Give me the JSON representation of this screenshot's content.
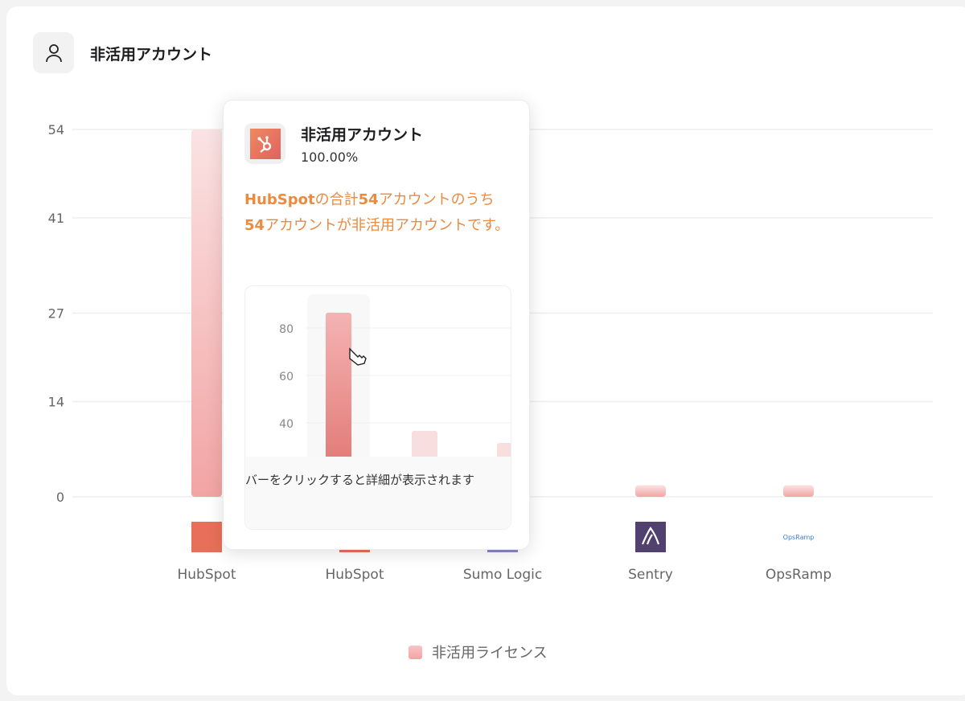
{
  "header": {
    "title": "非活用アカウント",
    "icon": "user-icon"
  },
  "chart_data": {
    "type": "bar",
    "categories": [
      "HubSpot",
      "HubSpot",
      "Sumo Logic",
      "Sentry",
      "OpsRamp"
    ],
    "category_icons": [
      "hubspot-logo",
      "hubspot-logo",
      "sumo-logic-logo",
      "sentry-logo",
      "opsramp-logo"
    ],
    "series": [
      {
        "name": "非活用ライセンス",
        "values": [
          54,
          null,
          null,
          1,
          1
        ]
      }
    ],
    "yticks": [
      0,
      14,
      27,
      41,
      54
    ],
    "ylim": [
      0,
      54
    ],
    "grid": true,
    "legend_position": "bottom",
    "color": "#f2a4a4"
  },
  "legend": {
    "label": "非活用ライセンス"
  },
  "tooltip": {
    "title": "非活用アカウント",
    "percent": "100.00%",
    "desc_parts": [
      "HubSpot",
      "の合計",
      "54",
      "アカウントのうち",
      "54",
      "アカウントが非活用アカウントです。"
    ],
    "accent": "#ec8a3f",
    "preview_yticks": [
      "80",
      "60",
      "40"
    ],
    "hint": "バーをクリックすると詳細が表示されます"
  }
}
